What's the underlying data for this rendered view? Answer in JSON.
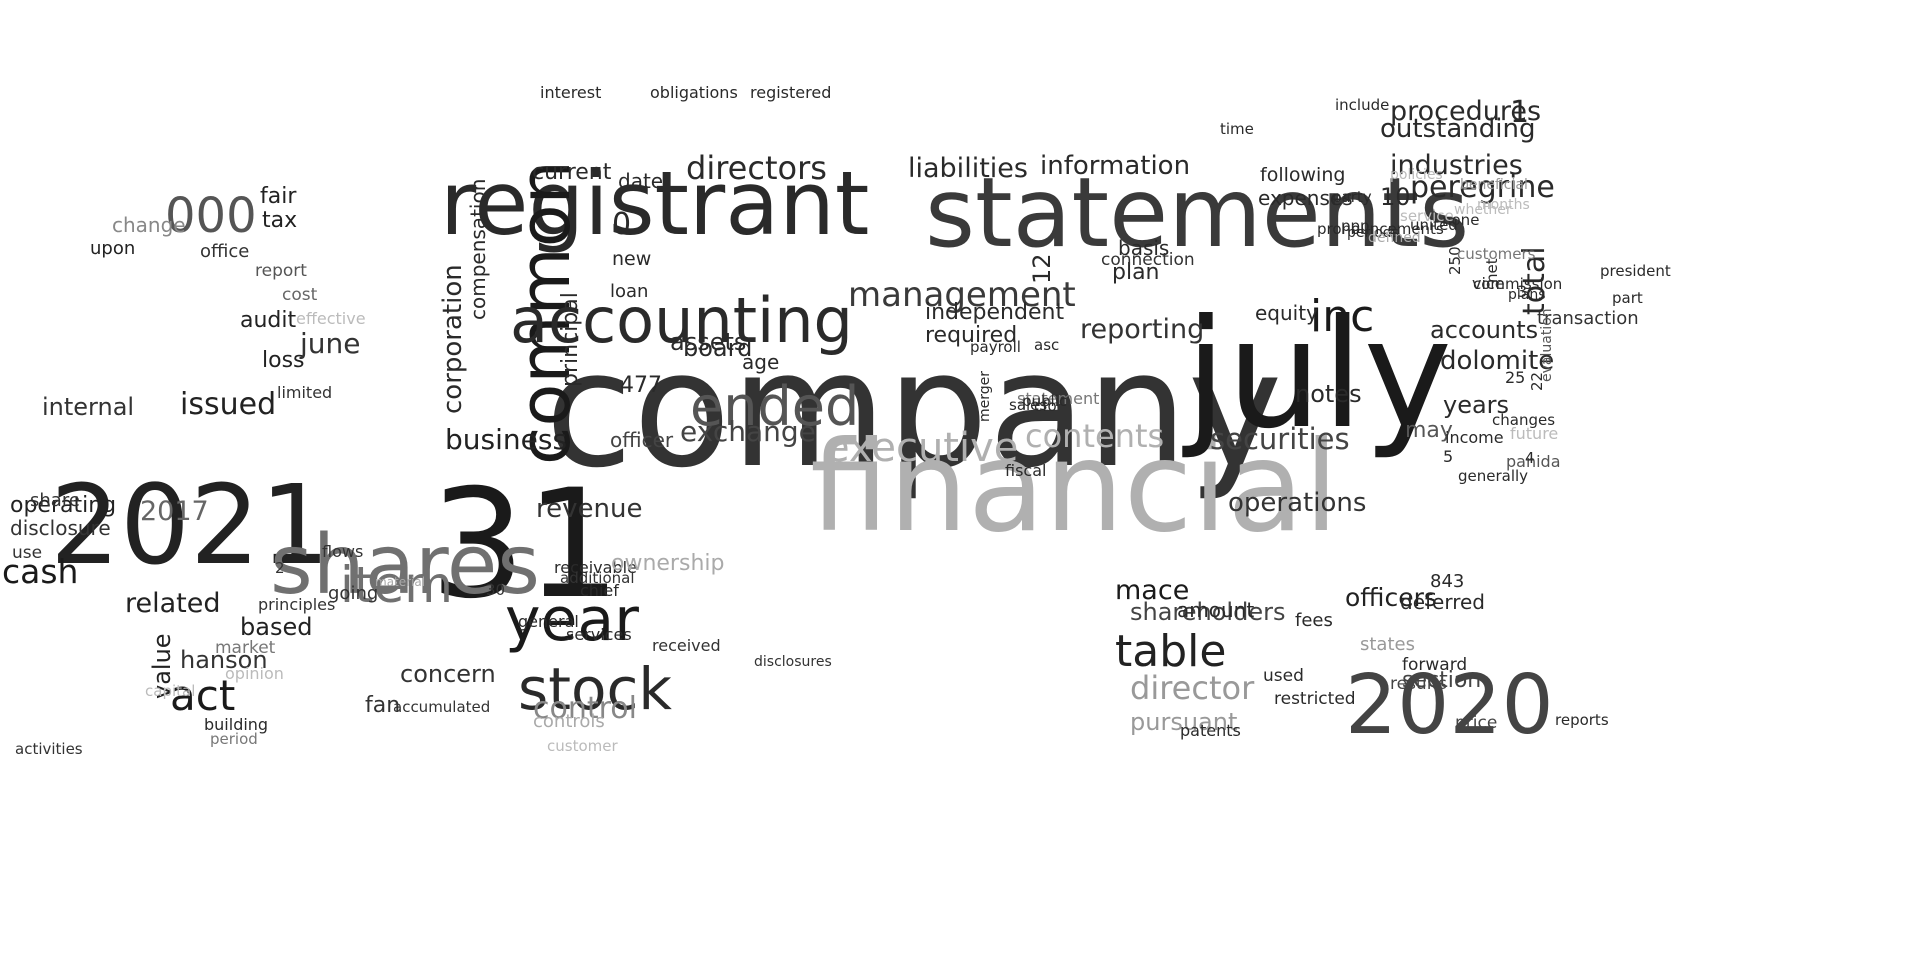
{
  "cloud": {
    "words": [
      {
        "t": "company",
        "c": "#333333"
      },
      {
        "t": "financial",
        "c": "#b0b0b0"
      },
      {
        "t": "statements",
        "c": "#3a3a3a"
      },
      {
        "t": "registrant",
        "c": "#2a2a2a"
      },
      {
        "t": "july",
        "c": "#1a1a1a"
      },
      {
        "t": "31",
        "c": "#1a1a1a"
      },
      {
        "t": "common",
        "c": "#1a1a1a"
      },
      {
        "t": "accounting",
        "c": "#2a2a2a"
      },
      {
        "t": "2021",
        "c": "#222222"
      },
      {
        "t": "shares",
        "c": "#707070"
      },
      {
        "t": "2020",
        "c": "#444444"
      },
      {
        "t": "year",
        "c": "#1a1a1a"
      },
      {
        "t": "stock",
        "c": "#2a2a2a"
      },
      {
        "t": "ended",
        "c": "#555555"
      },
      {
        "t": "management",
        "c": "#3a3a3a"
      },
      {
        "t": "directors",
        "c": "#2a2a2a"
      },
      {
        "t": "inc",
        "c": "#1a1a1a"
      },
      {
        "t": "table",
        "c": "#222222"
      },
      {
        "t": "item",
        "c": "#707070"
      },
      {
        "t": "executive",
        "c": "#b0b0b0"
      },
      {
        "t": "contents",
        "c": "#b0b0b0"
      },
      {
        "t": "director",
        "c": "#999999"
      },
      {
        "t": "000",
        "c": "#555555"
      },
      {
        "t": "act",
        "c": "#1a1a1a"
      },
      {
        "t": "control",
        "c": "#888888"
      },
      {
        "t": "exchange",
        "c": "#444444"
      },
      {
        "t": "business",
        "c": "#222222"
      },
      {
        "t": "liabilities",
        "c": "#2a2a2a"
      },
      {
        "t": "reporting",
        "c": "#333333"
      },
      {
        "t": "securities",
        "c": "#444444"
      },
      {
        "t": "peregrine",
        "c": "#2a2a2a"
      },
      {
        "t": "industries",
        "c": "#2a2a2a"
      },
      {
        "t": "procedures",
        "c": "#2a2a2a"
      },
      {
        "t": "outstanding",
        "c": "#2a2a2a"
      },
      {
        "t": "information",
        "c": "#2a2a2a"
      },
      {
        "t": "corporation",
        "c": "#2a2a2a"
      },
      {
        "t": "total",
        "c": "#2a2a2a"
      },
      {
        "t": "1",
        "c": "#2a2a2a"
      },
      {
        "t": "dolomite",
        "c": "#2a2a2a"
      },
      {
        "t": "accounts",
        "c": "#2a2a2a"
      },
      {
        "t": "years",
        "c": "#2a2a2a"
      },
      {
        "t": "may",
        "c": "#555555"
      },
      {
        "t": "operations",
        "c": "#333333"
      },
      {
        "t": "officers",
        "c": "#222222"
      },
      {
        "t": "section",
        "c": "#444444"
      },
      {
        "t": "shareholders",
        "c": "#444444"
      },
      {
        "t": "mace",
        "c": "#1a1a1a"
      },
      {
        "t": "pursuant",
        "c": "#999999"
      },
      {
        "t": "related",
        "c": "#222222"
      },
      {
        "t": "value",
        "c": "#222222"
      },
      {
        "t": "hanson",
        "c": "#333333"
      },
      {
        "t": "based",
        "c": "#222222"
      },
      {
        "t": "cash",
        "c": "#1a1a1a"
      },
      {
        "t": "issued",
        "c": "#222222"
      },
      {
        "t": "internal",
        "c": "#333333"
      },
      {
        "t": "operating",
        "c": "#222222"
      },
      {
        "t": "disclosure",
        "c": "#333333"
      },
      {
        "t": "2017",
        "c": "#666666"
      },
      {
        "t": "audit",
        "c": "#222222"
      },
      {
        "t": "tax",
        "c": "#222222"
      },
      {
        "t": "fair",
        "c": "#222222"
      },
      {
        "t": "loss",
        "c": "#222222"
      },
      {
        "t": "revenue",
        "c": "#333333"
      },
      {
        "t": "assets",
        "c": "#2a2a2a"
      },
      {
        "t": "board",
        "c": "#2a2a2a"
      },
      {
        "t": "principal",
        "c": "#2a2a2a"
      },
      {
        "t": "compensation",
        "c": "#2a2a2a"
      },
      {
        "t": "required",
        "c": "#2a2a2a"
      },
      {
        "t": "independent",
        "c": "#2a2a2a"
      },
      {
        "t": "equity",
        "c": "#2a2a2a"
      },
      {
        "t": "notes",
        "c": "#2a2a2a"
      },
      {
        "t": "plan",
        "c": "#2a2a2a"
      },
      {
        "t": "basis",
        "c": "#2a2a2a"
      },
      {
        "t": "current",
        "c": "#2a2a2a"
      },
      {
        "t": "date",
        "c": "#2a2a2a"
      },
      {
        "t": "expenses",
        "c": "#2a2a2a"
      },
      {
        "t": "following",
        "c": "#2a2a2a"
      },
      {
        "t": "statement",
        "c": "#777777"
      },
      {
        "t": "officer",
        "c": "#444444"
      },
      {
        "t": "future",
        "c": "#bbbbbb"
      },
      {
        "t": "12",
        "c": "#2a2a2a"
      },
      {
        "t": "10",
        "c": "#2a2a2a"
      },
      {
        "t": "0",
        "c": "#2a2a2a"
      },
      {
        "t": "477",
        "c": "#2a2a2a"
      },
      {
        "t": "age",
        "c": "#2a2a2a"
      },
      {
        "t": "new",
        "c": "#2a2a2a"
      },
      {
        "t": "loan",
        "c": "#2a2a2a"
      },
      {
        "t": "interest",
        "c": "#2a2a2a"
      },
      {
        "t": "obligations",
        "c": "#2a2a2a"
      },
      {
        "t": "registered",
        "c": "#2a2a2a"
      },
      {
        "t": "receivable",
        "c": "#2a2a2a"
      },
      {
        "t": "chief",
        "c": "#2a2a2a"
      },
      {
        "t": "services",
        "c": "#2a2a2a"
      },
      {
        "t": "general",
        "c": "#2a2a2a"
      },
      {
        "t": "controls",
        "c": "#aaaaaa"
      },
      {
        "t": "customer",
        "c": "#bbbbbb"
      },
      {
        "t": "amount",
        "c": "#2a2a2a"
      },
      {
        "t": "deferred",
        "c": "#2a2a2a"
      },
      {
        "t": "843",
        "c": "#2a2a2a"
      },
      {
        "t": "fees",
        "c": "#2a2a2a"
      },
      {
        "t": "states",
        "c": "#999999"
      },
      {
        "t": "used",
        "c": "#2a2a2a"
      },
      {
        "t": "restricted",
        "c": "#2a2a2a"
      },
      {
        "t": "forward",
        "c": "#2a2a2a"
      },
      {
        "t": "results",
        "c": "#444444"
      },
      {
        "t": "patents",
        "c": "#2a2a2a"
      },
      {
        "t": "price",
        "c": "#444444"
      },
      {
        "t": "reports",
        "c": "#2a2a2a"
      },
      {
        "t": "building",
        "c": "#2a2a2a"
      },
      {
        "t": "period",
        "c": "#777777"
      },
      {
        "t": "opinion",
        "c": "#bbbbbb"
      },
      {
        "t": "market",
        "c": "#777777"
      },
      {
        "t": "capital",
        "c": "#bbbbbb"
      },
      {
        "t": "activities",
        "c": "#333333"
      },
      {
        "t": "share",
        "c": "#333333"
      },
      {
        "t": "use",
        "c": "#333333"
      },
      {
        "t": "change",
        "c": "#888888"
      },
      {
        "t": "upon",
        "c": "#222222"
      },
      {
        "t": "office",
        "c": "#333333"
      },
      {
        "t": "report",
        "c": "#555555"
      },
      {
        "t": "cost",
        "c": "#666666"
      },
      {
        "t": "effective",
        "c": "#bbbbbb"
      },
      {
        "t": "limited",
        "c": "#333333"
      },
      {
        "t": "june",
        "c": "#333333"
      },
      {
        "t": "flows",
        "c": "#333333"
      },
      {
        "t": "principles",
        "c": "#333333"
      },
      {
        "t": "2",
        "c": "#333333"
      },
      {
        "t": "going",
        "c": "#333333"
      },
      {
        "t": "concern",
        "c": "#333333"
      },
      {
        "t": "fan",
        "c": "#333333"
      },
      {
        "t": "accumulated",
        "c": "#333333"
      },
      {
        "t": "additional",
        "c": "#333333"
      },
      {
        "t": "30",
        "c": "#333333"
      },
      {
        "t": "material",
        "c": "#aaaaaa"
      },
      {
        "t": "ownership",
        "c": "#aaaaaa"
      },
      {
        "t": "disclosures",
        "c": "#333333"
      },
      {
        "t": "received",
        "c": "#333333"
      },
      {
        "t": "transaction",
        "c": "#333333"
      },
      {
        "t": "connection",
        "c": "#333333"
      },
      {
        "t": "3",
        "c": "#333333"
      },
      {
        "t": "vice",
        "c": "#333333"
      },
      {
        "t": "panida",
        "c": "#555555"
      },
      {
        "t": "4",
        "c": "#2a2a2a"
      },
      {
        "t": "5",
        "c": "#2a2a2a"
      },
      {
        "t": "25",
        "c": "#2a2a2a"
      },
      {
        "t": "22",
        "c": "#2a2a2a"
      },
      {
        "t": "income",
        "c": "#2a2a2a"
      },
      {
        "t": "generally",
        "c": "#2a2a2a"
      },
      {
        "t": "changes",
        "c": "#2a2a2a"
      },
      {
        "t": "evaluation",
        "c": "#555555"
      },
      {
        "t": "net",
        "c": "#2a2a2a"
      },
      {
        "t": "plans",
        "c": "#2a2a2a"
      },
      {
        "t": "250",
        "c": "#2a2a2a"
      },
      {
        "t": "commission",
        "c": "#2a2a2a"
      },
      {
        "t": "president",
        "c": "#2a2a2a"
      },
      {
        "t": "part",
        "c": "#2a2a2a"
      },
      {
        "t": "asc",
        "c": "#2a2a2a"
      },
      {
        "t": "cfo",
        "c": "#2a2a2a"
      },
      {
        "t": "fiscal",
        "c": "#2a2a2a"
      },
      {
        "t": "public",
        "c": "#2a2a2a"
      },
      {
        "t": "merger",
        "c": "#2a2a2a"
      },
      {
        "t": "payroll",
        "c": "#2a2a2a"
      },
      {
        "t": "sales",
        "c": "#2a2a2a"
      },
      {
        "t": "time",
        "c": "#2a2a2a"
      },
      {
        "t": "pronouncements",
        "c": "#2a2a2a"
      },
      {
        "t": "united",
        "c": "#2a2a2a"
      },
      {
        "t": "none",
        "c": "#2a2a2a"
      },
      {
        "t": "periods",
        "c": "#2a2a2a"
      },
      {
        "t": "party",
        "c": "#2a2a2a"
      },
      {
        "t": "include",
        "c": "#2a2a2a"
      },
      {
        "t": "ppp",
        "c": "#2a2a2a"
      },
      {
        "t": "defined",
        "c": "#aaaaaa"
      },
      {
        "t": "policies",
        "c": "#bbbbbb"
      },
      {
        "t": "service",
        "c": "#bbbbbb"
      },
      {
        "t": "whether",
        "c": "#bbbbbb"
      },
      {
        "t": "beneficial",
        "c": "#999999"
      },
      {
        "t": "customers",
        "c": "#777777"
      },
      {
        "t": "months",
        "c": "#bbbbbb"
      }
    ]
  }
}
